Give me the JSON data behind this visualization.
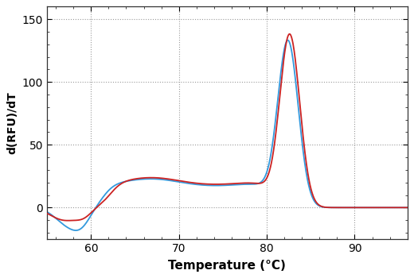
{
  "title": "",
  "xlabel": "Temperature (°C)",
  "ylabel": "d(RFU)/dT",
  "xlim": [
    55,
    96
  ],
  "ylim": [
    -25,
    160
  ],
  "yticks": [
    0,
    50,
    100,
    150
  ],
  "xticks": [
    60,
    70,
    80,
    90
  ],
  "grid_color": "#999999",
  "line_color_red": "#cc2222",
  "line_color_blue": "#3399dd",
  "background_color": "#ffffff",
  "linewidth": 1.3
}
